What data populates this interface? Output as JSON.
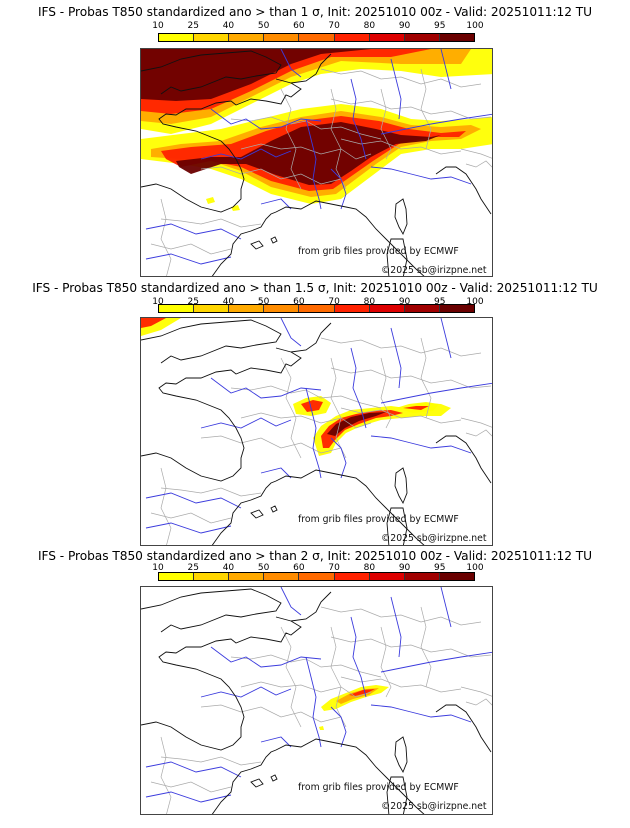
{
  "colorbar": {
    "ticks": [
      "10",
      "25",
      "40",
      "50",
      "60",
      "70",
      "80",
      "90",
      "95",
      "100"
    ],
    "colors": [
      "#ffff00",
      "#ffd600",
      "#ffaa00",
      "#ff8c00",
      "#ff6a00",
      "#ff2200",
      "#dd0000",
      "#a00000",
      "#6a0000"
    ]
  },
  "panels": [
    {
      "title": "IFS - Probas T850  standardized ano > than 1 σ, Init: 20251010 00z - Valid: 20251011:12 TU",
      "threshold": "1 σ"
    },
    {
      "title": "IFS - Probas T850  standardized ano > than 1.5 σ, Init: 20251010 00z - Valid: 20251011:12 TU",
      "threshold": "1.5 σ"
    },
    {
      "title": "IFS - Probas T850  standardized ano > than 2 σ, Init: 20251010 00z - Valid: 20251011:12 TU",
      "threshold": "2 σ"
    }
  ],
  "credits": {
    "source": "from grib files provided by ECMWF",
    "copyright": "©2025 sb@irizpne.net"
  },
  "map_colors": {
    "coast": "#111111",
    "border": "#aaaaaa",
    "river": "#3b3bdd"
  }
}
